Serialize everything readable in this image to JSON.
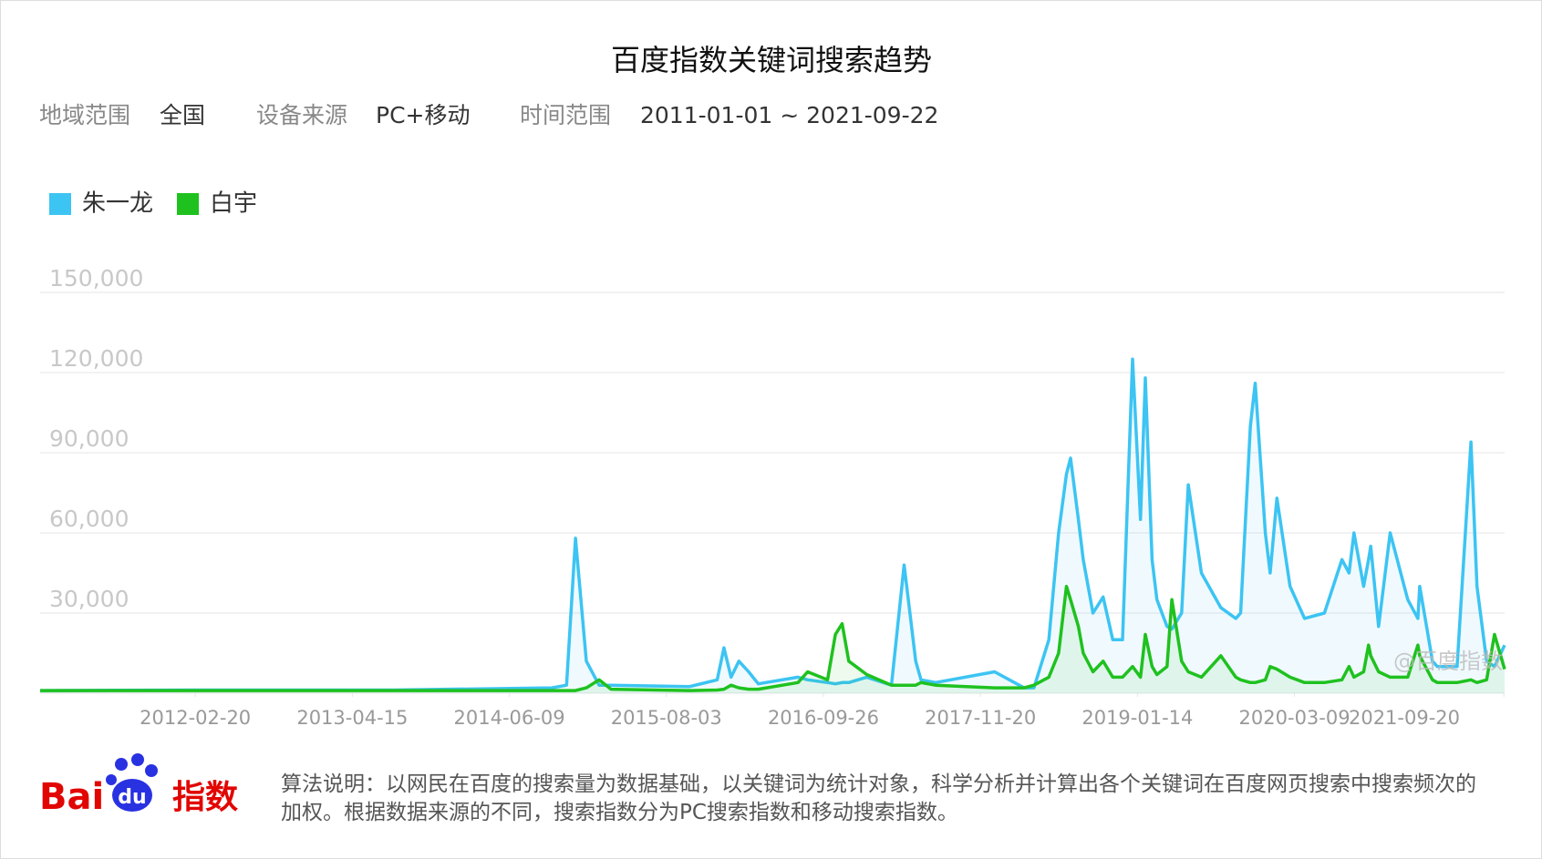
{
  "header": {
    "region_label": "地域范围",
    "region": "全国",
    "device_label": "设备来源",
    "device": "PC+移动",
    "time_label": "时间范围",
    "time": "2011-01-01 ~ 2021-09-22"
  },
  "chart_data": {
    "type": "line",
    "title": "百度指数关键词搜索趋势",
    "grid": true,
    "legend": "top-left",
    "watermark": "@百度指数",
    "x": [
      "2011-01-01",
      "2012-02-26",
      "2013-08-05",
      "2014-10-01",
      "2014-11-09",
      "2014-12-03",
      "2015-01-01",
      "2015-02-04",
      "2015-03-08",
      "2015-10-04",
      "2015-12-17",
      "2016-01-04",
      "2016-01-23",
      "2016-02-13",
      "2016-03-10",
      "2016-04-05",
      "2016-07-20",
      "2016-08-15",
      "2016-10-07",
      "2016-10-28",
      "2016-11-15",
      "2016-12-03",
      "2017-01-20",
      "2017-03-27",
      "2017-04-30",
      "2017-05-31",
      "2017-06-14",
      "2017-07-23",
      "2017-12-28",
      "2018-03-17",
      "2018-04-12",
      "2018-05-22",
      "2018-06-17",
      "2018-07-08",
      "2018-07-19",
      "2018-08-09",
      "2018-08-22",
      "2018-09-17",
      "2018-10-14",
      "2018-11-09",
      "2018-12-05",
      "2019-01-01",
      "2019-01-22",
      "2019-02-04",
      "2019-02-22",
      "2019-03-07",
      "2019-04-03",
      "2019-04-16",
      "2019-05-12",
      "2019-05-30",
      "2019-07-04",
      "2019-08-25",
      "2019-10-04",
      "2019-10-17",
      "2019-11-12",
      "2019-11-25",
      "2019-12-22",
      "2020-01-04",
      "2020-01-22",
      "2020-02-26",
      "2020-04-05",
      "2020-05-28",
      "2020-07-14",
      "2020-08-02",
      "2020-08-15",
      "2020-09-10",
      "2020-09-23",
      "2020-09-29",
      "2020-10-20",
      "2020-11-20",
      "2021-01-06",
      "2021-02-02",
      "2021-02-07",
      "2021-03-13",
      "2021-03-26",
      "2021-05-18",
      "2021-06-24",
      "2021-07-10",
      "2021-08-05",
      "2021-08-26",
      "2021-09-22"
    ],
    "series": [
      {
        "name": "朱一龙",
        "color": "#3cc4f3",
        "values": [
          1000,
          1200,
          1200,
          2000,
          3000,
          58000,
          12000,
          3000,
          3000,
          2500,
          5000,
          17000,
          6000,
          12000,
          8000,
          3500,
          6000,
          5000,
          4000,
          3500,
          4000,
          4000,
          6000,
          3000,
          48000,
          12000,
          5000,
          4000,
          8000,
          2000,
          2000,
          20000,
          60000,
          82000,
          88000,
          65000,
          50000,
          30000,
          36000,
          20000,
          20000,
          125000,
          65000,
          118000,
          50000,
          35000,
          25000,
          24000,
          30000,
          78000,
          45000,
          32000,
          28000,
          30000,
          100000,
          116000,
          60000,
          45000,
          73000,
          40000,
          28000,
          30000,
          50000,
          45000,
          60000,
          40000,
          50000,
          55000,
          25000,
          60000,
          35000,
          28000,
          40000,
          12000,
          10000,
          10000,
          94000,
          40000,
          12000,
          10000,
          18000
        ]
      },
      {
        "name": "白宇",
        "color": "#1fc11f",
        "values": [
          1000,
          1000,
          1000,
          1000,
          1000,
          1000,
          2000,
          5000,
          1500,
          1000,
          1200,
          1500,
          3000,
          2000,
          1500,
          1500,
          4000,
          8000,
          5000,
          22000,
          26000,
          12000,
          7000,
          3000,
          3000,
          3000,
          4000,
          3000,
          2000,
          2000,
          3000,
          6000,
          15000,
          40000,
          35000,
          25000,
          15000,
          8000,
          12000,
          6000,
          6000,
          10000,
          6000,
          22000,
          10000,
          7000,
          10000,
          35000,
          12000,
          8000,
          6000,
          14000,
          6000,
          5000,
          4000,
          4000,
          5000,
          10000,
          9000,
          6000,
          4000,
          4000,
          5000,
          10000,
          6000,
          8000,
          18000,
          14000,
          8000,
          6000,
          6000,
          18000,
          14000,
          5000,
          4000,
          4000,
          5000,
          4000,
          5000,
          22000,
          9000
        ]
      }
    ],
    "xlim": [
      "2011-01-01",
      "2021-09-22"
    ],
    "xticks": [
      "2012-02-20",
      "2013-04-15",
      "2014-06-09",
      "2015-08-03",
      "2016-09-26",
      "2017-11-20",
      "2019-01-14",
      "2020-03-09",
      "2021-09-20"
    ],
    "ylim": [
      0,
      150000
    ],
    "yticks": [
      {
        "value": 30000,
        "label": "30,000"
      },
      {
        "value": 60000,
        "label": "60,000"
      },
      {
        "value": 90000,
        "label": "90,000"
      },
      {
        "value": 120000,
        "label": "120,000"
      },
      {
        "value": 150000,
        "label": "150,000"
      }
    ]
  },
  "footer": {
    "logo_bai": "Bai",
    "logo_du": "du",
    "logo_index": "指数",
    "note": "算法说明：以网民在百度的搜索量为数据基础，以关键词为统计对象，科学分析并计算出各个关键词在百度网页搜索中搜索频次的加权。根据数据来源的不同，搜索指数分为PC搜索指数和移动搜索指数。"
  }
}
